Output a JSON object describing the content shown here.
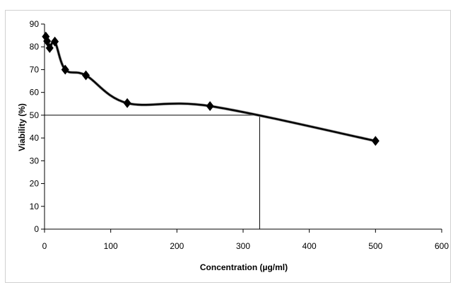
{
  "chart_data": {
    "type": "line",
    "title": "",
    "xlabel": "Concentration  (µg/ml)",
    "ylabel": "Viability (%)",
    "xlim": [
      0,
      600
    ],
    "ylim": [
      0,
      90
    ],
    "x_ticks": [
      0,
      100,
      200,
      300,
      400,
      500,
      600
    ],
    "y_ticks": [
      0,
      10,
      20,
      30,
      40,
      50,
      60,
      70,
      80,
      90
    ],
    "grid": false,
    "legend": "none",
    "smooth": true,
    "series": [
      {
        "marker": "diamond",
        "color": "#000000",
        "points": [
          {
            "x": 1.95,
            "y": 84.5
          },
          {
            "x": 3.9,
            "y": 82.5
          },
          {
            "x": 7.8,
            "y": 79.5
          },
          {
            "x": 15.6,
            "y": 82.3
          },
          {
            "x": 31.25,
            "y": 70.0
          },
          {
            "x": 62.5,
            "y": 67.5
          },
          {
            "x": 125,
            "y": 55.3
          },
          {
            "x": 250,
            "y": 54.0
          },
          {
            "x": 500,
            "y": 38.7
          }
        ]
      }
    ],
    "reference_lines": {
      "y_value": 50,
      "x_value": 325
    }
  }
}
